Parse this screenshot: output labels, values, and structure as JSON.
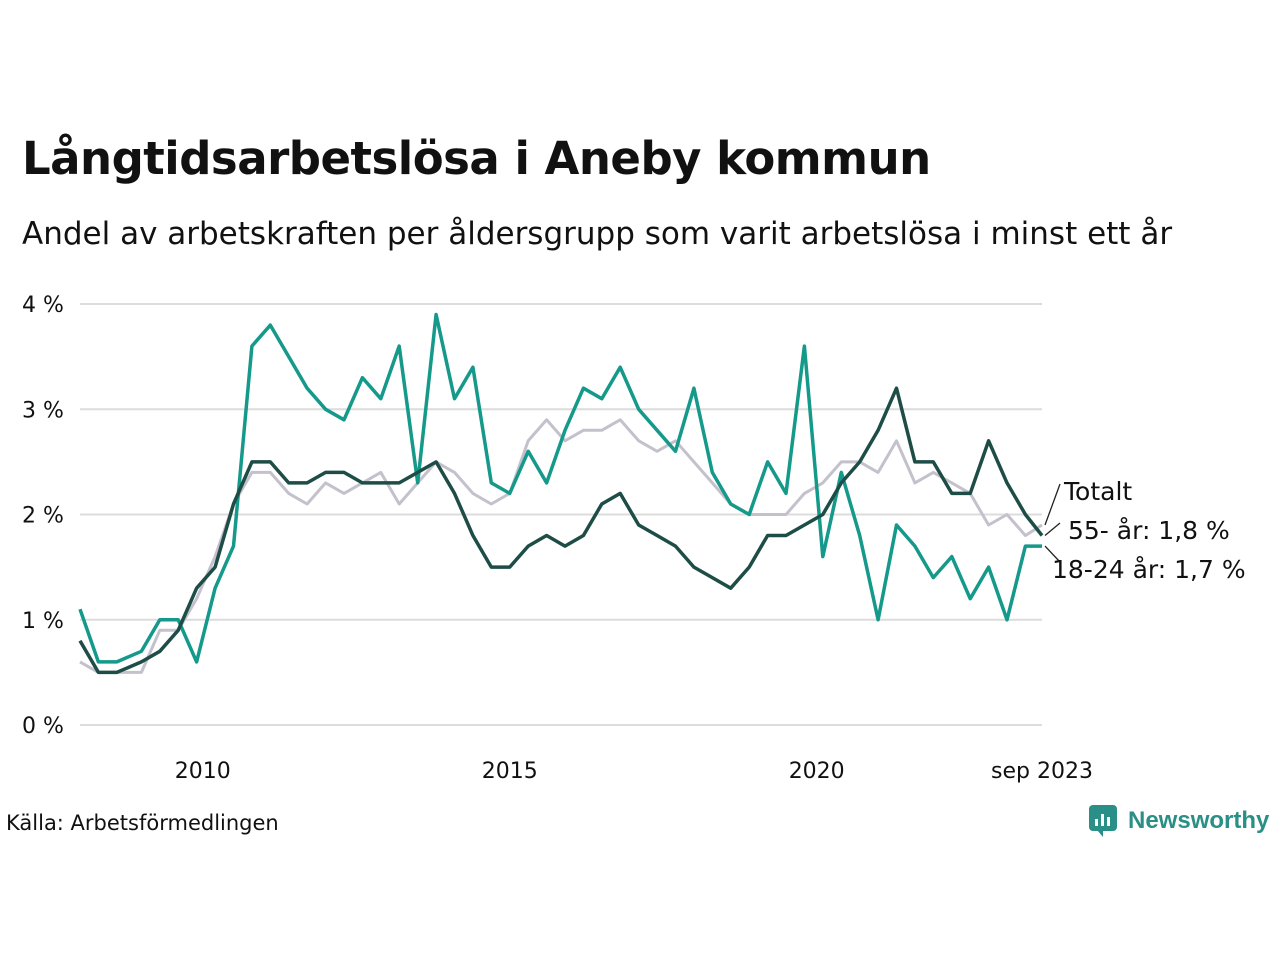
{
  "title": "Långtidsarbetslösa i Aneby kommun",
  "subtitle": "Andel av arbetskraften per åldersgrupp som varit arbetslösa i minst ett år",
  "source": "Källa: Arbetsförmedlingen",
  "brand": "Newsworthy",
  "colors": {
    "total": "#c4c1cc",
    "age55": "#1e4d47",
    "age18_24": "#14998a",
    "grid": "#dcdcdc",
    "brand": "#2a8f86"
  },
  "chart_data": {
    "type": "line",
    "title": "Långtidsarbetslösa i Aneby kommun",
    "xlabel": "",
    "ylabel": "",
    "x_range": [
      2008.0,
      2023.67
    ],
    "ylim": [
      0,
      4
    ],
    "y_ticks": [
      {
        "value": 0,
        "label": "0 %"
      },
      {
        "value": 1,
        "label": "1 %"
      },
      {
        "value": 2,
        "label": "2 %"
      },
      {
        "value": 3,
        "label": "3 %"
      },
      {
        "value": 4,
        "label": "4 %"
      }
    ],
    "x_ticks": [
      {
        "value": 2010,
        "label": "2010"
      },
      {
        "value": 2015,
        "label": "2015"
      },
      {
        "value": 2020,
        "label": "2020"
      },
      {
        "value": 2023.67,
        "label": "sep 2023"
      }
    ],
    "series": [
      {
        "key": "total",
        "name": "Totalt",
        "end_label": "Totalt",
        "x": [
          2008.0,
          2008.3,
          2008.6,
          2009.0,
          2009.3,
          2009.6,
          2009.9,
          2010.2,
          2010.5,
          2010.8,
          2011.1,
          2011.4,
          2011.7,
          2012.0,
          2012.3,
          2012.6,
          2012.9,
          2013.2,
          2013.5,
          2013.8,
          2014.1,
          2014.4,
          2014.7,
          2015.0,
          2015.3,
          2015.6,
          2015.9,
          2016.2,
          2016.5,
          2016.8,
          2017.1,
          2017.4,
          2017.7,
          2018.0,
          2018.3,
          2018.6,
          2018.9,
          2019.2,
          2019.5,
          2019.8,
          2020.1,
          2020.4,
          2020.7,
          2021.0,
          2021.3,
          2021.6,
          2021.9,
          2022.2,
          2022.5,
          2022.8,
          2023.1,
          2023.4,
          2023.67
        ],
        "values": [
          0.6,
          0.5,
          0.5,
          0.5,
          0.9,
          0.9,
          1.2,
          1.6,
          2.1,
          2.4,
          2.4,
          2.2,
          2.1,
          2.3,
          2.2,
          2.3,
          2.4,
          2.1,
          2.3,
          2.5,
          2.4,
          2.2,
          2.1,
          2.2,
          2.7,
          2.9,
          2.7,
          2.8,
          2.8,
          2.9,
          2.7,
          2.6,
          2.7,
          2.5,
          2.3,
          2.1,
          2.0,
          2.0,
          2.0,
          2.2,
          2.3,
          2.5,
          2.5,
          2.4,
          2.7,
          2.3,
          2.4,
          2.3,
          2.2,
          1.9,
          2.0,
          1.8,
          1.9
        ]
      },
      {
        "key": "age55",
        "name": "55- år",
        "end_label": "55- år: 1,8 %",
        "x": [
          2008.0,
          2008.3,
          2008.6,
          2009.0,
          2009.3,
          2009.6,
          2009.9,
          2010.2,
          2010.5,
          2010.8,
          2011.1,
          2011.4,
          2011.7,
          2012.0,
          2012.3,
          2012.6,
          2012.9,
          2013.2,
          2013.5,
          2013.8,
          2014.1,
          2014.4,
          2014.7,
          2015.0,
          2015.3,
          2015.6,
          2015.9,
          2016.2,
          2016.5,
          2016.8,
          2017.1,
          2017.4,
          2017.7,
          2018.0,
          2018.3,
          2018.6,
          2018.9,
          2019.2,
          2019.5,
          2019.8,
          2020.1,
          2020.4,
          2020.7,
          2021.0,
          2021.3,
          2021.6,
          2021.9,
          2022.2,
          2022.5,
          2022.8,
          2023.1,
          2023.4,
          2023.67
        ],
        "values": [
          0.8,
          0.5,
          0.5,
          0.6,
          0.7,
          0.9,
          1.3,
          1.5,
          2.1,
          2.5,
          2.5,
          2.3,
          2.3,
          2.4,
          2.4,
          2.3,
          2.3,
          2.3,
          2.4,
          2.5,
          2.2,
          1.8,
          1.5,
          1.5,
          1.7,
          1.8,
          1.7,
          1.8,
          2.1,
          2.2,
          1.9,
          1.8,
          1.7,
          1.5,
          1.4,
          1.3,
          1.5,
          1.8,
          1.8,
          1.9,
          2.0,
          2.3,
          2.5,
          2.8,
          3.2,
          2.5,
          2.5,
          2.2,
          2.2,
          2.7,
          2.3,
          2.0,
          1.8
        ]
      },
      {
        "key": "age18_24",
        "name": "18-24 år",
        "end_label": "18-24 år: 1,7 %",
        "x": [
          2008.0,
          2008.3,
          2008.6,
          2009.0,
          2009.3,
          2009.6,
          2009.9,
          2010.2,
          2010.5,
          2010.8,
          2011.1,
          2011.4,
          2011.7,
          2012.0,
          2012.3,
          2012.6,
          2012.9,
          2013.2,
          2013.5,
          2013.8,
          2014.1,
          2014.4,
          2014.7,
          2015.0,
          2015.3,
          2015.6,
          2015.9,
          2016.2,
          2016.5,
          2016.8,
          2017.1,
          2017.4,
          2017.7,
          2018.0,
          2018.3,
          2018.6,
          2018.9,
          2019.2,
          2019.5,
          2019.8,
          2020.1,
          2020.4,
          2020.7,
          2021.0,
          2021.3,
          2021.6,
          2021.9,
          2022.2,
          2022.5,
          2022.8,
          2023.1,
          2023.4,
          2023.67
        ],
        "values": [
          1.1,
          0.6,
          0.6,
          0.7,
          1.0,
          1.0,
          0.6,
          1.3,
          1.7,
          3.6,
          3.8,
          3.5,
          3.2,
          3.0,
          2.9,
          3.3,
          3.1,
          3.6,
          2.3,
          3.9,
          3.1,
          3.4,
          2.3,
          2.2,
          2.6,
          2.3,
          2.8,
          3.2,
          3.1,
          3.4,
          3.0,
          2.8,
          2.6,
          3.2,
          2.4,
          2.1,
          2.0,
          2.5,
          2.2,
          3.6,
          1.6,
          2.4,
          1.8,
          1.0,
          1.9,
          1.7,
          1.4,
          1.6,
          1.2,
          1.5,
          1.0,
          1.7,
          1.7
        ]
      }
    ]
  }
}
